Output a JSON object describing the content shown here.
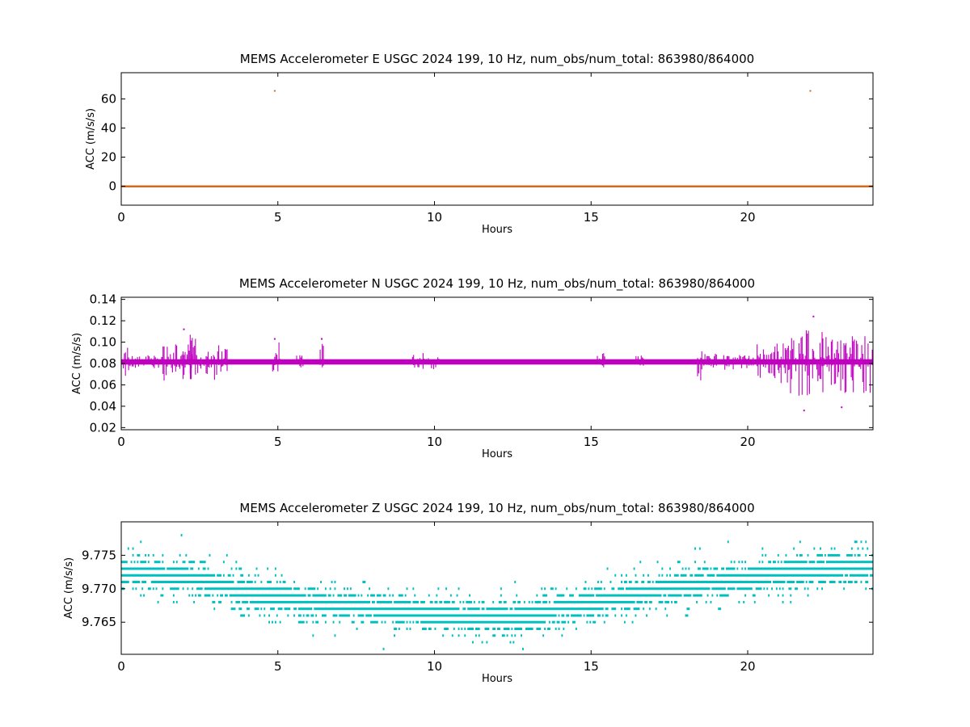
{
  "figure": {
    "background": "#ffffff"
  },
  "chart_data": [
    {
      "type": "scatter",
      "title": "MEMS Accelerometer E USGC 2024 199, 10 Hz, num_obs/num_total: 863980/864000",
      "xlabel": "Hours",
      "ylabel": "ACC (m/s/s)",
      "xlim": [
        0,
        24
      ],
      "ylim": [
        -13,
        78
      ],
      "xticks": [
        0,
        5,
        10,
        15,
        20
      ],
      "xtick_labels": [
        "0",
        "5",
        "10",
        "15",
        "20"
      ],
      "yticks": [
        0,
        20,
        40,
        60
      ],
      "ytick_labels": [
        "0",
        "20",
        "40",
        "60"
      ],
      "color": "#d2691e",
      "grid": false,
      "series": [
        {
          "baseline": 0.0,
          "band": [
            -0.6,
            0.6
          ],
          "x_range": [
            0,
            24
          ]
        }
      ],
      "outliers": [
        {
          "x": 4.9,
          "y": 65.5
        },
        {
          "x": 22.0,
          "y": 65.5
        }
      ]
    },
    {
      "type": "scatter",
      "title": "MEMS Accelerometer N USGC 2024 199, 10 Hz, num_obs/num_total: 863980/864000",
      "xlabel": "Hours",
      "ylabel": "ACC (m/s/s)",
      "xlim": [
        0,
        24
      ],
      "ylim": [
        0.018,
        0.142
      ],
      "xticks": [
        0,
        5,
        10,
        15,
        20
      ],
      "xtick_labels": [
        "0",
        "5",
        "10",
        "15",
        "20"
      ],
      "yticks": [
        0.02,
        0.04,
        0.06,
        0.08,
        0.1,
        0.12,
        0.14
      ],
      "ytick_labels": [
        "0.02",
        "0.04",
        "0.06",
        "0.08",
        "0.10",
        "0.12",
        "0.14"
      ],
      "color": "#bf00bf",
      "grid": false,
      "series": [
        {
          "baseline": 0.082,
          "band": [
            0.079,
            0.084
          ],
          "x_range": [
            0,
            24
          ]
        }
      ],
      "bursts": [
        {
          "x0": 0.0,
          "x1": 0.25,
          "lo": 0.066,
          "hi": 0.096
        },
        {
          "x0": 0.25,
          "x1": 1.3,
          "lo": 0.075,
          "hi": 0.088
        },
        {
          "x0": 1.3,
          "x1": 3.4,
          "lo": 0.064,
          "hi": 0.098
        },
        {
          "x0": 2.1,
          "x1": 2.4,
          "lo": 0.058,
          "hi": 0.11
        },
        {
          "x0": 4.8,
          "x1": 5.1,
          "lo": 0.07,
          "hi": 0.1
        },
        {
          "x0": 5.6,
          "x1": 5.9,
          "lo": 0.075,
          "hi": 0.088
        },
        {
          "x0": 6.35,
          "x1": 6.5,
          "lo": 0.066,
          "hi": 0.1
        },
        {
          "x0": 9.3,
          "x1": 10.2,
          "lo": 0.074,
          "hi": 0.09
        },
        {
          "x0": 15.2,
          "x1": 15.5,
          "lo": 0.076,
          "hi": 0.09
        },
        {
          "x0": 16.4,
          "x1": 16.7,
          "lo": 0.076,
          "hi": 0.088
        },
        {
          "x0": 18.4,
          "x1": 18.7,
          "lo": 0.064,
          "hi": 0.094
        },
        {
          "x0": 18.7,
          "x1": 20.3,
          "lo": 0.074,
          "hi": 0.09
        },
        {
          "x0": 20.3,
          "x1": 21.0,
          "lo": 0.066,
          "hi": 0.1
        },
        {
          "x0": 21.0,
          "x1": 22.4,
          "lo": 0.048,
          "hi": 0.112
        },
        {
          "x0": 22.4,
          "x1": 24.0,
          "lo": 0.052,
          "hi": 0.108
        }
      ],
      "outliers": [
        {
          "x": 2.0,
          "y": 0.112
        },
        {
          "x": 4.9,
          "y": 0.103
        },
        {
          "x": 6.4,
          "y": 0.103
        },
        {
          "x": 21.8,
          "y": 0.036
        },
        {
          "x": 22.1,
          "y": 0.124
        },
        {
          "x": 23.0,
          "y": 0.039
        }
      ]
    },
    {
      "type": "scatter",
      "title": "MEMS Accelerometer Z USGC 2024 199, 10 Hz, num_obs/num_total: 863980/864000",
      "xlabel": "Hours",
      "ylabel": "ACC (m/s/s)",
      "xlim": [
        0,
        24
      ],
      "ylim": [
        9.7602,
        9.78
      ],
      "xticks": [
        0,
        5,
        10,
        15,
        20
      ],
      "xtick_labels": [
        "0",
        "5",
        "10",
        "15",
        "20"
      ],
      "yticks": [
        9.765,
        9.77,
        9.775
      ],
      "ytick_labels": [
        "9.765",
        "9.770",
        "9.775"
      ],
      "color": "#00bfbf",
      "grid": false,
      "quantum": 0.001,
      "level_curve": [
        {
          "x": 0.0,
          "y": 9.7725
        },
        {
          "x": 2.0,
          "y": 9.772
        },
        {
          "x": 4.0,
          "y": 9.7695
        },
        {
          "x": 6.0,
          "y": 9.768
        },
        {
          "x": 8.0,
          "y": 9.767
        },
        {
          "x": 10.0,
          "y": 9.7662
        },
        {
          "x": 12.5,
          "y": 9.7655
        },
        {
          "x": 14.0,
          "y": 9.767
        },
        {
          "x": 16.0,
          "y": 9.7688
        },
        {
          "x": 18.0,
          "y": 9.7705
        },
        {
          "x": 20.0,
          "y": 9.7718
        },
        {
          "x": 22.0,
          "y": 9.7728
        },
        {
          "x": 24.0,
          "y": 9.7732
        }
      ],
      "level_spread": 3
    }
  ]
}
